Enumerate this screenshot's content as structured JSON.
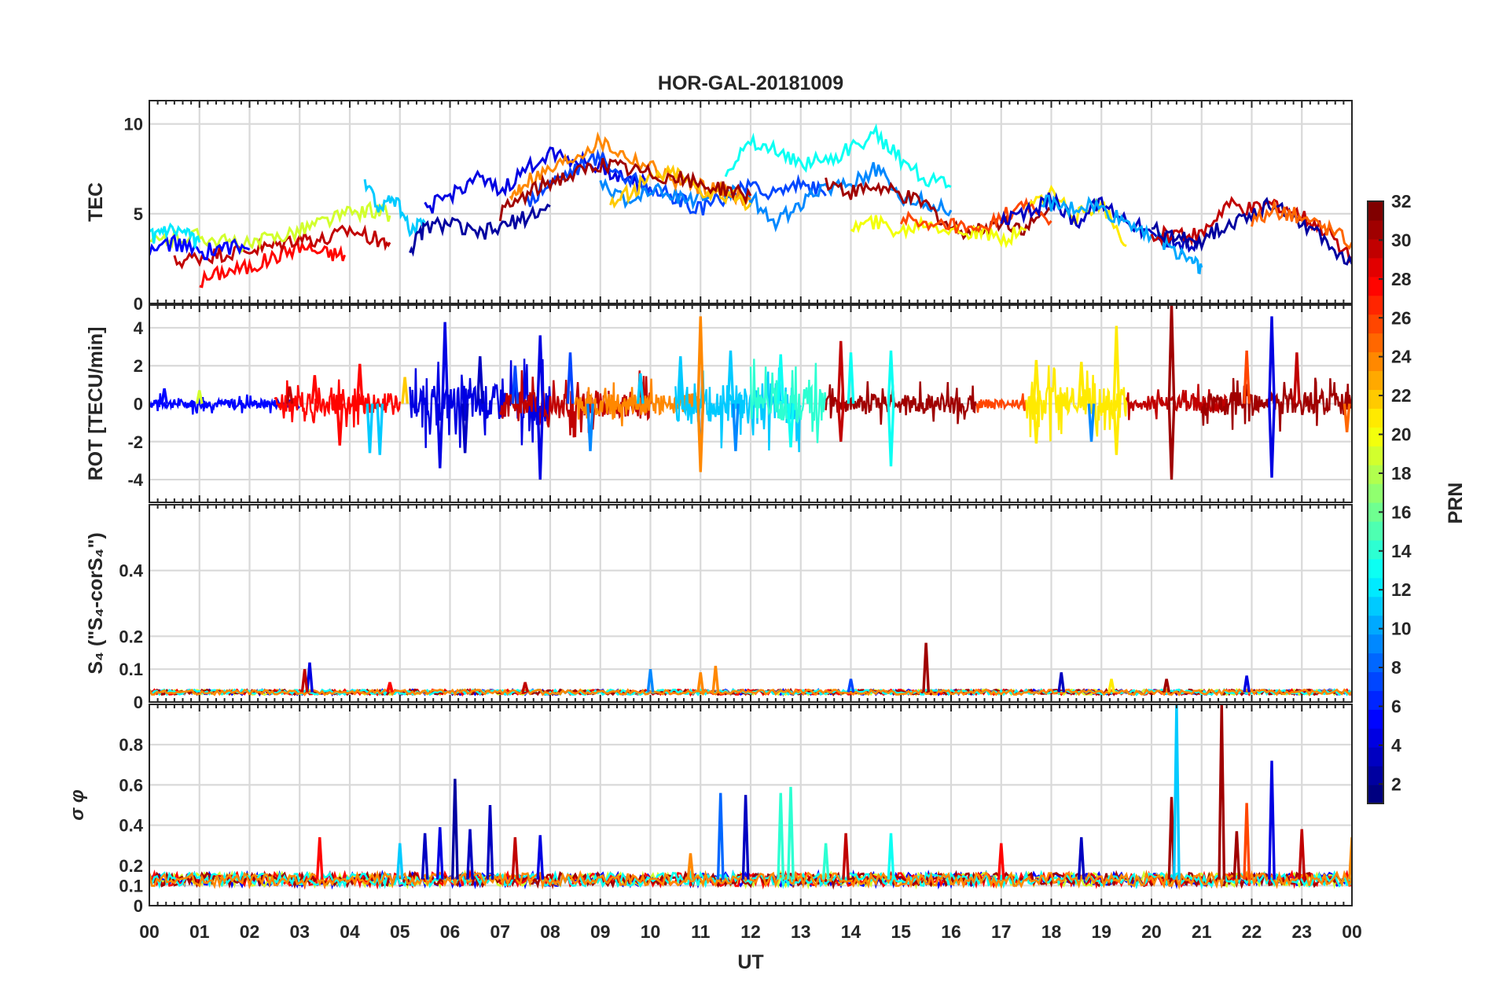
{
  "figure": {
    "title": "HOR-GAL-20181009",
    "xlabel": "UT",
    "colorbar": {
      "label": "PRN",
      "range": [
        1,
        32
      ],
      "ticks": [
        "2",
        "4",
        "6",
        "8",
        "10",
        "12",
        "14",
        "16",
        "18",
        "20",
        "22",
        "24",
        "26",
        "28",
        "30",
        "32"
      ],
      "colormap": "jet"
    }
  },
  "chart_data": [
    {
      "type": "line",
      "panel": "TEC",
      "ylabel": "TEC",
      "ylim": [
        0,
        11.3
      ],
      "yticks": [
        "0",
        "5",
        "10"
      ],
      "xlim": [
        0,
        24
      ],
      "xticks": [
        "00",
        "01",
        "02",
        "03",
        "04",
        "05",
        "06",
        "07",
        "08",
        "09",
        "10",
        "11",
        "12",
        "13",
        "14",
        "15",
        "16",
        "17",
        "18",
        "19",
        "20",
        "21",
        "22",
        "23",
        "00"
      ],
      "grid": true,
      "series": [
        {
          "prn": 28,
          "x": [
            1.0,
            1.5,
            2.0,
            2.5,
            3.0,
            3.5,
            3.9
          ],
          "y": [
            1.2,
            1.8,
            2.0,
            2.6,
            3.2,
            2.8,
            2.7
          ]
        },
        {
          "prn": 30,
          "x": [
            0.5,
            1.0,
            1.5,
            2.0,
            2.5,
            3.0,
            3.5,
            4.0,
            4.5,
            4.8
          ],
          "y": [
            2.3,
            2.6,
            2.8,
            3.0,
            3.2,
            3.7,
            3.5,
            4.1,
            3.6,
            3.4
          ]
        },
        {
          "prn": 19,
          "x": [
            0.0,
            0.5,
            1.0,
            1.5,
            2.0,
            2.5,
            3.0,
            3.5,
            4.0,
            4.5,
            4.8
          ],
          "y": [
            3.4,
            3.6,
            3.8,
            3.4,
            3.2,
            3.7,
            4.1,
            4.6,
            5.0,
            5.2,
            4.9
          ]
        },
        {
          "prn": 5,
          "x": [
            0.0,
            0.5,
            1.0,
            1.5,
            2.0
          ],
          "y": [
            2.9,
            3.4,
            2.8,
            3.2,
            3.0
          ]
        },
        {
          "prn": 12,
          "x": [
            0.0,
            0.3,
            0.7,
            1.0
          ],
          "y": [
            3.6,
            4.0,
            3.8,
            3.4
          ]
        },
        {
          "prn": 11,
          "x": [
            4.3,
            4.6,
            4.9,
            5.2,
            5.5
          ],
          "y": [
            6.8,
            5.2,
            5.8,
            4.2,
            4.5
          ]
        },
        {
          "prn": 2,
          "x": [
            5.2,
            5.5,
            6.0,
            6.5,
            7.0,
            7.5,
            8.0
          ],
          "y": [
            3.0,
            4.2,
            4.5,
            3.8,
            4.2,
            4.8,
            5.4
          ]
        },
        {
          "prn": 4,
          "x": [
            5.5,
            6.0,
            6.5,
            7.0,
            7.5,
            8.0,
            8.5,
            9.0,
            9.5,
            10.0
          ],
          "y": [
            5.2,
            6.0,
            7.0,
            6.2,
            7.4,
            8.5,
            8.0,
            7.6,
            7.0,
            6.5
          ]
        },
        {
          "prn": 7,
          "x": [
            7.5,
            8.0,
            8.5,
            9.0,
            9.5,
            10.0,
            10.5,
            11.0,
            11.5,
            12.0,
            12.5,
            13.0,
            13.5
          ],
          "y": [
            5.5,
            6.8,
            7.5,
            8.2,
            7.0,
            6.5,
            5.8,
            5.2,
            6.0,
            6.5,
            6.2,
            6.8,
            6.0
          ]
        },
        {
          "prn": 9,
          "x": [
            9.0,
            9.5,
            10.0,
            10.5,
            11.0,
            11.5,
            12.0,
            12.5,
            13.0,
            13.5,
            14.0,
            14.5,
            15.0,
            15.5,
            16.0
          ],
          "y": [
            7.0,
            5.5,
            6.5,
            6.0,
            5.8,
            6.3,
            5.9,
            4.6,
            5.5,
            6.5,
            6.8,
            7.5,
            6.0,
            5.6,
            5.2
          ]
        },
        {
          "prn": 13,
          "x": [
            11.5,
            12.0,
            12.5,
            13.0,
            13.5,
            14.0,
            14.5,
            15.0,
            15.5,
            16.0
          ],
          "y": [
            7.5,
            9.0,
            8.5,
            7.8,
            8.0,
            8.6,
            9.4,
            8.0,
            7.0,
            6.5
          ]
        },
        {
          "prn": 24,
          "x": [
            7.2,
            7.5,
            8.0,
            8.5,
            9.0,
            9.5,
            10.0,
            10.5,
            11.0,
            11.5,
            12.0
          ],
          "y": [
            5.8,
            6.8,
            7.4,
            8.2,
            9.0,
            8.2,
            7.6,
            6.8,
            6.5,
            6.2,
            5.8
          ]
        },
        {
          "prn": 22,
          "x": [
            9.2,
            9.6,
            10.0,
            10.5,
            11.0,
            11.5,
            12.0
          ],
          "y": [
            5.6,
            6.2,
            7.0,
            7.4,
            6.4,
            6.0,
            5.6
          ]
        },
        {
          "prn": 31,
          "x": [
            7.0,
            7.5,
            8.0,
            8.5,
            9.0,
            9.5,
            10.0,
            10.5,
            11.0,
            11.5,
            12.0
          ],
          "y": [
            5.0,
            6.0,
            6.8,
            7.2,
            7.8,
            7.5,
            7.2,
            7.0,
            6.6,
            6.4,
            6.0
          ]
        },
        {
          "prn": 31,
          "x": [
            13.5,
            14.0,
            14.5,
            15.0,
            15.5,
            16.0,
            16.5,
            17.0,
            17.5,
            18.0
          ],
          "y": [
            6.8,
            6.2,
            6.5,
            6.0,
            5.5,
            4.2,
            4.0,
            4.6,
            4.2,
            5.2
          ]
        },
        {
          "prn": 20,
          "x": [
            14.0,
            14.5,
            15.0,
            15.5,
            16.0,
            16.5,
            17.0,
            17.5
          ],
          "y": [
            4.2,
            4.5,
            4.0,
            4.6,
            4.1,
            3.9,
            3.6,
            4.1
          ]
        },
        {
          "prn": 26,
          "x": [
            15.0,
            15.5,
            16.0,
            16.5,
            17.0,
            17.5,
            18.0
          ],
          "y": [
            4.8,
            4.2,
            4.4,
            3.9,
            4.8,
            5.4,
            4.6
          ]
        },
        {
          "prn": 21,
          "x": [
            17.5,
            18.0,
            18.5,
            19.0,
            19.5
          ],
          "y": [
            5.2,
            6.2,
            4.8,
            5.6,
            3.2
          ]
        },
        {
          "prn": 3,
          "x": [
            17.0,
            17.5,
            18.0,
            18.5,
            19.0,
            19.5,
            20.0,
            20.5,
            21.0
          ],
          "y": [
            4.5,
            5.0,
            5.8,
            4.6,
            5.6,
            4.8,
            3.8,
            3.4,
            3.2
          ]
        },
        {
          "prn": 10,
          "x": [
            17.8,
            18.3,
            18.8,
            19.3,
            19.8,
            20.3,
            20.8,
            21.0
          ],
          "y": [
            5.8,
            5.2,
            5.5,
            4.8,
            4.2,
            3.2,
            2.5,
            2.0
          ]
        },
        {
          "prn": 30,
          "x": [
            20.0,
            20.5,
            21.0,
            21.5,
            22.0,
            22.5,
            23.0,
            23.5,
            24.0
          ],
          "y": [
            3.6,
            4.0,
            3.8,
            5.5,
            5.2,
            5.6,
            4.8,
            4.0,
            2.6
          ]
        },
        {
          "prn": 2,
          "x": [
            20.0,
            20.5,
            21.0,
            21.5,
            22.0,
            22.5,
            23.0,
            23.5,
            24.0
          ],
          "y": [
            4.2,
            3.6,
            3.5,
            4.4,
            5.0,
            5.6,
            4.6,
            3.4,
            2.2
          ]
        },
        {
          "prn": 25,
          "x": [
            22.0,
            22.5,
            23.0,
            23.5,
            24.0
          ],
          "y": [
            4.6,
            5.2,
            4.8,
            4.2,
            3.4
          ]
        }
      ]
    },
    {
      "type": "line",
      "panel": "ROT",
      "ylabel": "ROT [TECU/min]",
      "ylim": [
        -5.2,
        5.2
      ],
      "yticks": [
        "-4",
        "-2",
        "0",
        "2",
        "4"
      ],
      "xlim": [
        0,
        24
      ],
      "grid": true,
      "spikes": [
        {
          "x": 0.3,
          "y": 0.8,
          "prn": 5
        },
        {
          "x": 1.0,
          "y": 0.7,
          "prn": 19
        },
        {
          "x": 2.8,
          "y": 0.9,
          "prn": 30
        },
        {
          "x": 3.3,
          "y": 1.5,
          "prn": 28
        },
        {
          "x": 4.2,
          "y": 2.1,
          "prn": 28
        },
        {
          "x": 4.6,
          "y": -2.7,
          "prn": 11
        },
        {
          "x": 4.4,
          "y": -2.6,
          "prn": 11
        },
        {
          "x": 3.8,
          "y": -2.2,
          "prn": 28
        },
        {
          "x": 5.1,
          "y": 1.4,
          "prn": 22
        },
        {
          "x": 5.8,
          "y": -3.4,
          "prn": 4
        },
        {
          "x": 5.9,
          "y": 4.3,
          "prn": 4
        },
        {
          "x": 6.3,
          "y": -2.6,
          "prn": 3
        },
        {
          "x": 6.6,
          "y": 2.5,
          "prn": 3
        },
        {
          "x": 7.3,
          "y": 2.0,
          "prn": 7
        },
        {
          "x": 7.8,
          "y": 3.6,
          "prn": 4
        },
        {
          "x": 7.8,
          "y": -4.0,
          "prn": 4
        },
        {
          "x": 8.4,
          "y": 2.7,
          "prn": 7
        },
        {
          "x": 8.8,
          "y": -2.5,
          "prn": 9
        },
        {
          "x": 9.8,
          "y": 1.6,
          "prn": 11
        },
        {
          "x": 10.6,
          "y": 2.5,
          "prn": 11
        },
        {
          "x": 11.0,
          "y": -3.0,
          "prn": 9
        },
        {
          "x": 11.0,
          "y": 4.6,
          "prn": 24
        },
        {
          "x": 11.0,
          "y": -3.6,
          "prn": 24
        },
        {
          "x": 11.6,
          "y": 2.8,
          "prn": 11
        },
        {
          "x": 11.7,
          "y": -2.5,
          "prn": 9
        },
        {
          "x": 12.6,
          "y": 2.6,
          "prn": 13
        },
        {
          "x": 12.8,
          "y": -2.3,
          "prn": 13
        },
        {
          "x": 13.8,
          "y": 3.3,
          "prn": 30
        },
        {
          "x": 13.8,
          "y": -2.0,
          "prn": 30
        },
        {
          "x": 14.0,
          "y": 2.7,
          "prn": 13
        },
        {
          "x": 14.8,
          "y": 2.8,
          "prn": 13
        },
        {
          "x": 14.8,
          "y": -3.3,
          "prn": 13
        },
        {
          "x": 17.7,
          "y": 2.3,
          "prn": 21
        },
        {
          "x": 17.7,
          "y": -2.1,
          "prn": 21
        },
        {
          "x": 18.6,
          "y": 2.2,
          "prn": 21
        },
        {
          "x": 18.8,
          "y": -2.0,
          "prn": 9
        },
        {
          "x": 19.3,
          "y": 4.1,
          "prn": 21
        },
        {
          "x": 19.3,
          "y": -2.7,
          "prn": 21
        },
        {
          "x": 20.4,
          "y": 5.3,
          "prn": 31
        },
        {
          "x": 20.4,
          "y": -4.0,
          "prn": 31
        },
        {
          "x": 21.9,
          "y": 2.8,
          "prn": 26
        },
        {
          "x": 22.4,
          "y": 4.6,
          "prn": 4
        },
        {
          "x": 22.4,
          "y": -3.9,
          "prn": 4
        },
        {
          "x": 22.9,
          "y": 2.7,
          "prn": 30
        },
        {
          "x": 23.9,
          "y": -1.5,
          "prn": 25
        }
      ],
      "noise_bands": [
        {
          "x0": 0.0,
          "x1": 3.0,
          "amp": 0.4,
          "prn": 5
        },
        {
          "x0": 2.5,
          "x1": 5.0,
          "amp": 0.9,
          "prn": 28
        },
        {
          "x0": 5.2,
          "x1": 8.0,
          "amp": 1.6,
          "prn": 4
        },
        {
          "x0": 7.0,
          "x1": 10.0,
          "amp": 1.2,
          "prn": 30
        },
        {
          "x0": 8.5,
          "x1": 11.0,
          "amp": 0.9,
          "prn": 24
        },
        {
          "x0": 10.5,
          "x1": 13.0,
          "amp": 1.8,
          "prn": 11
        },
        {
          "x0": 12.0,
          "x1": 13.5,
          "amp": 1.6,
          "prn": 14
        },
        {
          "x0": 13.5,
          "x1": 16.5,
          "amp": 0.8,
          "prn": 31
        },
        {
          "x0": 16.5,
          "x1": 17.5,
          "amp": 0.4,
          "prn": 26
        },
        {
          "x0": 17.5,
          "x1": 19.5,
          "amp": 1.5,
          "prn": 21
        },
        {
          "x0": 19.5,
          "x1": 21.5,
          "amp": 0.7,
          "prn": 30
        },
        {
          "x0": 21.0,
          "x1": 24.0,
          "amp": 1.0,
          "prn": 31
        }
      ]
    },
    {
      "type": "line",
      "panel": "S4",
      "ylabel": "S₄ (\"S₄-corS₄\")",
      "ylim": [
        0,
        0.6
      ],
      "yticks": [
        "0",
        "0.1",
        "0.2",
        "0.4"
      ],
      "xlim": [
        0,
        24
      ],
      "grid": true,
      "baseline": 0.03,
      "spikes": [
        {
          "x": 3.2,
          "y": 0.12,
          "prn": 4
        },
        {
          "x": 3.1,
          "y": 0.1,
          "prn": 30
        },
        {
          "x": 10.0,
          "y": 0.1,
          "prn": 9
        },
        {
          "x": 11.3,
          "y": 0.11,
          "prn": 24
        },
        {
          "x": 11.0,
          "y": 0.09,
          "prn": 24
        },
        {
          "x": 15.5,
          "y": 0.18,
          "prn": 31
        },
        {
          "x": 18.2,
          "y": 0.09,
          "prn": 3
        },
        {
          "x": 19.2,
          "y": 0.07,
          "prn": 21
        },
        {
          "x": 20.3,
          "y": 0.07,
          "prn": 31
        },
        {
          "x": 21.9,
          "y": 0.08,
          "prn": 4
        },
        {
          "x": 4.8,
          "y": 0.06,
          "prn": 28
        },
        {
          "x": 7.5,
          "y": 0.06,
          "prn": 30
        },
        {
          "x": 14.0,
          "y": 0.07,
          "prn": 7
        }
      ]
    },
    {
      "type": "line",
      "panel": "sigma_phi",
      "ylabel": "σ φ",
      "ylim": [
        0,
        1.0
      ],
      "yticks": [
        "0",
        "0.1",
        "0.2",
        "0.4",
        "0.6",
        "0.8"
      ],
      "xlim": [
        0,
        24
      ],
      "grid": true,
      "baseline": 0.13,
      "spikes": [
        {
          "x": 3.4,
          "y": 0.34,
          "prn": 28
        },
        {
          "x": 5.0,
          "y": 0.31,
          "prn": 11
        },
        {
          "x": 5.5,
          "y": 0.36,
          "prn": 3
        },
        {
          "x": 5.8,
          "y": 0.39,
          "prn": 4
        },
        {
          "x": 6.1,
          "y": 0.63,
          "prn": 2
        },
        {
          "x": 6.4,
          "y": 0.38,
          "prn": 3
        },
        {
          "x": 6.8,
          "y": 0.5,
          "prn": 3
        },
        {
          "x": 7.3,
          "y": 0.34,
          "prn": 30
        },
        {
          "x": 7.8,
          "y": 0.35,
          "prn": 4
        },
        {
          "x": 10.8,
          "y": 0.26,
          "prn": 24
        },
        {
          "x": 11.4,
          "y": 0.56,
          "prn": 8
        },
        {
          "x": 11.9,
          "y": 0.55,
          "prn": 3
        },
        {
          "x": 12.6,
          "y": 0.56,
          "prn": 14
        },
        {
          "x": 12.8,
          "y": 0.59,
          "prn": 14
        },
        {
          "x": 13.5,
          "y": 0.31,
          "prn": 14
        },
        {
          "x": 13.9,
          "y": 0.36,
          "prn": 30
        },
        {
          "x": 14.8,
          "y": 0.36,
          "prn": 13
        },
        {
          "x": 17.0,
          "y": 0.31,
          "prn": 28
        },
        {
          "x": 18.6,
          "y": 0.34,
          "prn": 3
        },
        {
          "x": 20.4,
          "y": 0.54,
          "prn": 31
        },
        {
          "x": 20.5,
          "y": 1.0,
          "prn": 11
        },
        {
          "x": 21.4,
          "y": 1.0,
          "prn": 31
        },
        {
          "x": 21.9,
          "y": 0.51,
          "prn": 26
        },
        {
          "x": 21.7,
          "y": 0.37,
          "prn": 31
        },
        {
          "x": 22.4,
          "y": 0.72,
          "prn": 4
        },
        {
          "x": 23.0,
          "y": 0.38,
          "prn": 30
        },
        {
          "x": 24.0,
          "y": 0.34,
          "prn": 24
        }
      ]
    }
  ]
}
